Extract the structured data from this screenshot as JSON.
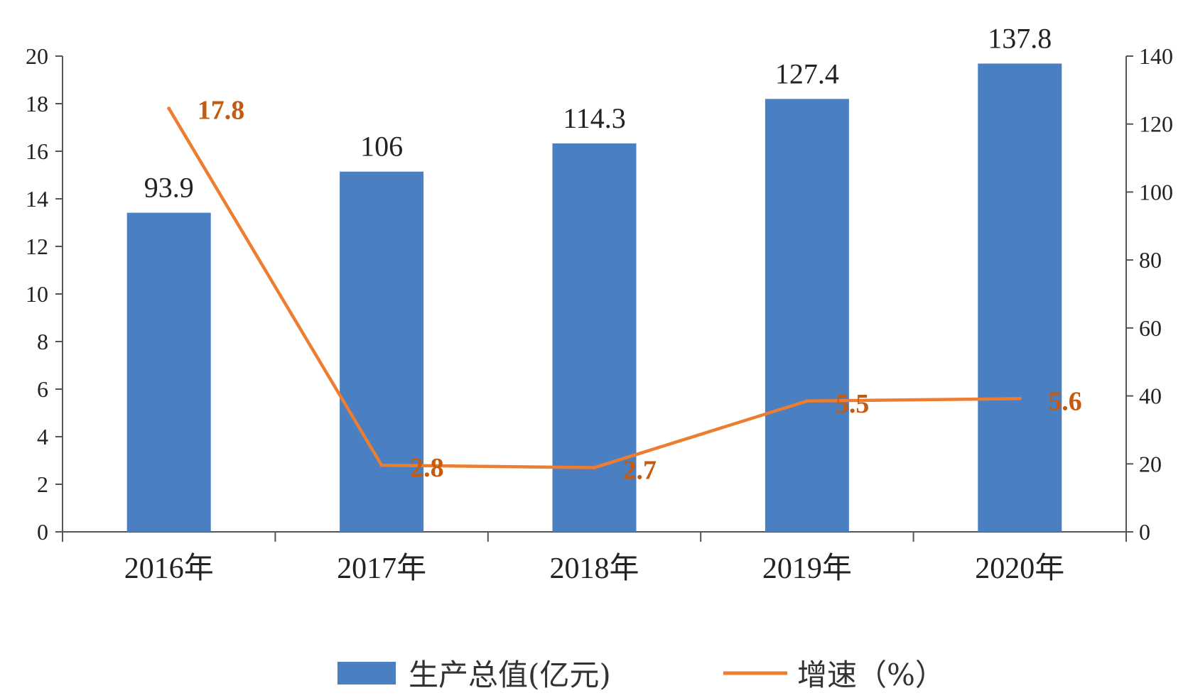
{
  "chart_data": {
    "type": "bar",
    "categories": [
      "2016年",
      "2017年",
      "2018年",
      "2019年",
      "2020年"
    ],
    "series": [
      {
        "name": "生产总值(亿元)",
        "type": "bar",
        "axis": "right",
        "values": [
          93.9,
          106,
          114.3,
          127.4,
          137.8
        ]
      },
      {
        "name": "增速（%）",
        "type": "line",
        "axis": "left",
        "values": [
          17.8,
          2.8,
          2.7,
          5.5,
          5.6
        ]
      }
    ],
    "left_axis": {
      "ylim": [
        0,
        20
      ],
      "ticks": [
        "0",
        "2",
        "4",
        "6",
        "8",
        "10",
        "12",
        "14",
        "16",
        "18",
        "20"
      ]
    },
    "right_axis": {
      "ylim": [
        0,
        140
      ],
      "ticks": [
        "0",
        "20",
        "40",
        "60",
        "80",
        "100",
        "120",
        "140"
      ]
    },
    "colors": {
      "bar": "#4a7fc1",
      "line": "#ed7d31",
      "line_label": "#c55a11",
      "axis": "#555555"
    },
    "legend_position": "bottom",
    "grid": false
  }
}
